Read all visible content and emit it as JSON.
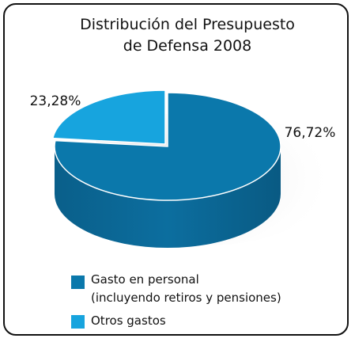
{
  "chart_data": {
    "type": "pie",
    "title": "Distribución del Presupuesto\nde Defensa 2008",
    "categories": [
      "Gasto en personal\n(incluyendo retiros y pensiones)",
      "Otros gastos"
    ],
    "values": [
      76.72,
      23.28
    ],
    "value_labels": [
      "76,72%",
      "23,28%"
    ],
    "colors": [
      "#0b78ab",
      "#17a4de"
    ]
  }
}
